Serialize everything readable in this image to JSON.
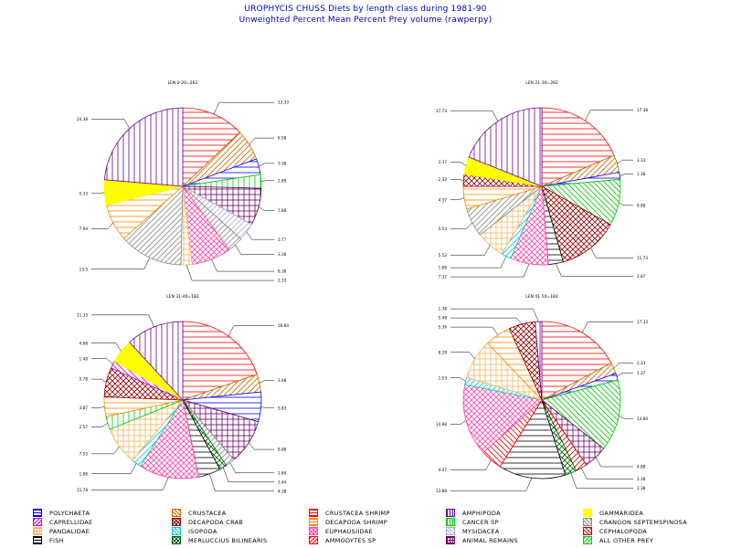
{
  "title": "UROPHYCIS CHUSS Diets by length class during 1981-90",
  "subtitle": "Unweighted Percent Mean Percent Prey  volume (rawperpy)",
  "legend": [
    {
      "name": "POLYCHAETA",
      "color": "#0000ff",
      "pattern": "hor"
    },
    {
      "name": "CAPRELLIDAE",
      "color": "#cc00cc",
      "pattern": "diagB"
    },
    {
      "name": "PANDALIDAE",
      "color": "#f2b860",
      "pattern": "grid"
    },
    {
      "name": "FISH",
      "color": "#000000",
      "pattern": "hor"
    },
    {
      "name": "CRUSTACEA",
      "color": "#cc6600",
      "pattern": "diagF"
    },
    {
      "name": "DECAPODA CRAB",
      "color": "#990000",
      "pattern": "cross"
    },
    {
      "name": "ISOPODA",
      "color": "#00cccc",
      "pattern": "diagF"
    },
    {
      "name": "MERLUCCIUS BILINEARIS",
      "color": "#006600",
      "pattern": "cross"
    },
    {
      "name": "CRUSTACEA SHRIMP",
      "color": "#ff0000",
      "pattern": "hor"
    },
    {
      "name": "DECAPODA SHRIMP",
      "color": "#ff8800",
      "pattern": "hor"
    },
    {
      "name": "EUPHAUSIIDAE",
      "color": "#ff44aa",
      "pattern": "cross"
    },
    {
      "name": "AMMODYTES SP",
      "color": "#ff0000",
      "pattern": "diagB"
    },
    {
      "name": "AMPHIPODA",
      "color": "#660099",
      "pattern": "vert"
    },
    {
      "name": "CANCER SP",
      "color": "#00cc00",
      "pattern": "vert"
    },
    {
      "name": "MYSIDACEA",
      "color": "#aaaacc",
      "pattern": "diagF"
    },
    {
      "name": "ANIMAL REMAINS",
      "color": "#660066",
      "pattern": "grid"
    },
    {
      "name": "GAMMARIDEA",
      "color": "#ffff00",
      "pattern": "solid"
    },
    {
      "name": "CRANGON SEPTEMSPINOSA",
      "color": "#888888",
      "pattern": "diagF"
    },
    {
      "name": "CEPHALOPODA",
      "color": "#cc0000",
      "pattern": "diagF"
    },
    {
      "name": "ALL OTHER PREY",
      "color": "#00cc00",
      "pattern": "diagB"
    }
  ],
  "chart_data": [
    {
      "type": "pie",
      "title": "LEN 0-20=262",
      "slices": [
        {
          "category": "CRUSTACEA SHRIMP",
          "value": 13.33,
          "label": "13.33"
        },
        {
          "category": "CRUSTACEA",
          "value": 6.58,
          "label": "6.58"
        },
        {
          "category": "POLYCHAETA",
          "value": 3.38,
          "label": "3.38"
        },
        {
          "category": "CANCER SP",
          "value": 2.89,
          "label": "2.89"
        },
        {
          "category": "ANIMAL REMAINS",
          "value": 7.88,
          "label": "7.88"
        },
        {
          "category": "MYSIDACEA",
          "value": 3.77,
          "label": "3.77"
        },
        {
          "category": "CRANGON SEPTEMSPINOSA",
          "value": 3.36,
          "label": "3.36"
        },
        {
          "category": "EUPHAUSIIDAE",
          "value": 8.38,
          "label": "8.38"
        },
        {
          "category": "PANDALIDAE",
          "value": 2.33,
          "label": "2.33"
        },
        {
          "category": "CRANGON SEPTEMSPINOSA",
          "value": 13.5,
          "label": "13.5"
        },
        {
          "category": "DECAPODA SHRIMP",
          "value": 7.94,
          "label": "7.94"
        },
        {
          "category": "GAMMARIDEA",
          "value": 5.33,
          "label": "5.33"
        },
        {
          "category": "AMPHIPODA",
          "value": 24.38,
          "label": "24.38"
        }
      ]
    },
    {
      "type": "pie",
      "title": "LEN 21-30=282",
      "slices": [
        {
          "category": "CRUSTACEA SHRIMP",
          "value": 17.38,
          "label": "17.38"
        },
        {
          "category": "CRUSTACEA",
          "value": 3.33,
          "label": "3.33"
        },
        {
          "category": "POLYCHAETA",
          "value": 1.38,
          "label": "1.38"
        },
        {
          "category": "ALL OTHER PREY",
          "value": 8.88,
          "label": "8.88"
        },
        {
          "category": "DECAPODA CRAB",
          "value": 11.73,
          "label": "11.73"
        },
        {
          "category": "FISH",
          "value": 2.87,
          "label": "2.87"
        },
        {
          "category": "EUPHAUSIIDAE",
          "value": 7.32,
          "label": "7.32"
        },
        {
          "category": "ISOPODA",
          "value": 1.88,
          "label": "1.88"
        },
        {
          "category": "PANDALIDAE",
          "value": 5.52,
          "label": "5.52"
        },
        {
          "category": "CRANGON SEPTEMSPINOSA",
          "value": 5.53,
          "label": "5.53"
        },
        {
          "category": "DECAPODA SHRIMP",
          "value": 4.37,
          "label": "4.37"
        },
        {
          "category": "DECAPODA CRAB",
          "value": 2.33,
          "label": "2.33"
        },
        {
          "category": "GAMMARIDEA",
          "value": 3.37,
          "label": "3.37"
        },
        {
          "category": "AMPHIPODA",
          "value": 17.73,
          "label": "17.73"
        }
      ]
    },
    {
      "type": "pie",
      "title": "LEN 31-40=182",
      "slices": [
        {
          "category": "CRUSTACEA SHRIMP",
          "value": 18.84,
          "label": "18.84"
        },
        {
          "category": "CRUSTACEA",
          "value": 3.48,
          "label": "3.48"
        },
        {
          "category": "POLYCHAETA",
          "value": 5.83,
          "label": "5.83"
        },
        {
          "category": "ANIMAL REMAINS",
          "value": 8.88,
          "label": "8.88"
        },
        {
          "category": "CRANGON SEPTEMSPINOSA",
          "value": 1.84,
          "label": "1.84"
        },
        {
          "category": "MERLUCCIUS BILINEARIS",
          "value": 1.44,
          "label": "1.44"
        },
        {
          "category": "FISH",
          "value": 4.38,
          "label": "4.38"
        },
        {
          "category": "EUPHAUSIIDAE",
          "value": 11.78,
          "label": "11.78"
        },
        {
          "category": "ISOPODA",
          "value": 1.88,
          "label": "1.88"
        },
        {
          "category": "PANDALIDAE",
          "value": 7.53,
          "label": "7.53"
        },
        {
          "category": "CANCER SP",
          "value": 2.57,
          "label": "2.57"
        },
        {
          "category": "DECAPODA SHRIMP",
          "value": 3.87,
          "label": "3.87"
        },
        {
          "category": "DECAPODA CRAB",
          "value": 5.78,
          "label": "5.78"
        },
        {
          "category": "CAPRELLIDAE",
          "value": 1.48,
          "label": "1.48"
        },
        {
          "category": "GAMMARIDEA",
          "value": 4.68,
          "label": "4.68"
        },
        {
          "category": "AMPHIPODA",
          "value": 11.33,
          "label": "11.33"
        }
      ]
    },
    {
      "type": "pie",
      "title": "LEN 41-50=182",
      "slices": [
        {
          "category": "CRUSTACEA SHRIMP",
          "value": 17.33,
          "label": "17.33"
        },
        {
          "category": "CRUSTACEA",
          "value": 2.33,
          "label": "2.33"
        },
        {
          "category": "POLYCHAETA",
          "value": 1.37,
          "label": "1.37"
        },
        {
          "category": "ALL OTHER PREY",
          "value": 14.84,
          "label": "14.84"
        },
        {
          "category": "ANIMAL REMAINS",
          "value": 4.88,
          "label": "4.88"
        },
        {
          "category": "CEPHALOPODA",
          "value": 2.38,
          "label": "2.38"
        },
        {
          "category": "MERLUCCIUS BILINEARIS",
          "value": 2.38,
          "label": "2.38"
        },
        {
          "category": "FISH",
          "value": 13.88,
          "label": "13.88"
        },
        {
          "category": "AMMODYTES SP",
          "value": 4.47,
          "label": "4.47"
        },
        {
          "category": "EUPHAUSIIDAE",
          "value": 14.88,
          "label": "14.88"
        },
        {
          "category": "ISOPODA",
          "value": 1.53,
          "label": "1.53"
        },
        {
          "category": "PANDALIDAE",
          "value": 8.28,
          "label": "8.28"
        },
        {
          "category": "DECAPODA SHRIMP",
          "value": 5.36,
          "label": "5.36"
        },
        {
          "category": "DECAPODA CRAB",
          "value": 5.48,
          "label": "5.48"
        },
        {
          "category": "AMPHIPODA",
          "value": 1.38,
          "label": "1.38"
        }
      ]
    }
  ]
}
